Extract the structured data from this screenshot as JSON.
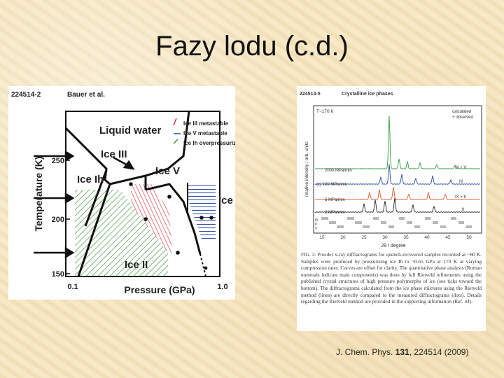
{
  "slide": {
    "title": "Fazy lodu (c.d.)"
  },
  "phase_diagram": {
    "figure_id": "224514-2",
    "author": "Bauer et al.",
    "legend": [
      "Ice III metastable",
      "Ice V metastable",
      "Ice Ih overpressurized"
    ],
    "legend_colors": [
      "#d8323a",
      "#2a4aa0",
      "#3a9a3a"
    ],
    "regions": [
      "Liquid water",
      "Ice III",
      "Ice Ih",
      "Ice V",
      "Ice VI",
      "Ice II"
    ],
    "x_label": "Pressure (GPa)",
    "y_label": "Temperature (K)",
    "x_ticks": [
      "0.1",
      "1.0"
    ],
    "y_ticks": [
      "250",
      "200",
      "150"
    ]
  },
  "xrd_figure": {
    "figure_id": "224514-5",
    "title": "Crystalline ice phases",
    "temp_label": "T~170 K",
    "legend": [
      "calculated",
      "+ observed"
    ],
    "y_label": "relative intensity / arb. units",
    "x_label": "2θ / degree",
    "x_ticks": [
      "15",
      "20",
      "25",
      "30",
      "35",
      "40",
      "45",
      "50"
    ],
    "traces": [
      {
        "label": "2000 MPa/min",
        "phase": "IX + V",
        "color": "#2e9a3a"
      },
      {
        "label": "(c) 100 MPa/min",
        "phase": "IX",
        "color": "#2a4aa0"
      },
      {
        "label": "5 MPa/min",
        "phase": "IX + II",
        "color": "#e0582a"
      },
      {
        "label": "2 MPa/min",
        "phase": "II",
        "color": "#222222"
      }
    ],
    "tick_rows": [
      "IX",
      "II",
      "V"
    ],
    "caption": "FIG. 3. Powder x-ray diffractograms for quench-recovered samples recorded at ~80 K. Samples were produced by pressurizing ice Ih to ~0.65 GPa at 170 K at varying compression rates. Curves are offset for clarity. The quantitative phase analysis (Roman numerals indicate main components) was done by full Rietveld refinements using the published crystal structures of high pressure polymorphs of ice (see ticks toward the bottom). The diffractograms calculated from the ice phase mixtures using the Rietveld method (lines) are directly compared to the measured diffractograms (dots). Details regarding the Rietveld method are provided in the supporting information (Ref. 44)."
  },
  "citation": {
    "journal": "J. Chem. Phys.",
    "volume": "131",
    "article": "224514 (2009)"
  }
}
